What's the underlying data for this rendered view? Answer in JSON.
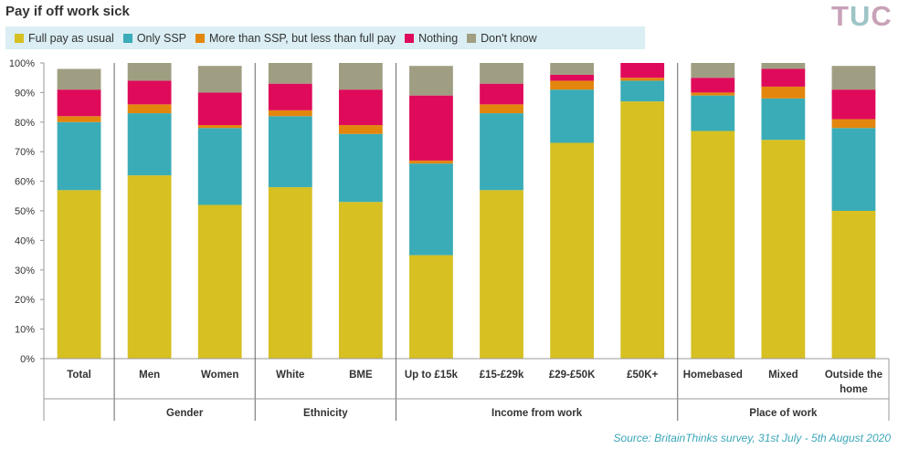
{
  "title": "Pay if off work sick",
  "logo": {
    "letters": [
      "T",
      "U",
      "C"
    ]
  },
  "source": "Source: BritainThinks  survey, 31st July - 5th August 2020",
  "chart_data": {
    "type": "bar",
    "stacked": true,
    "ylim": [
      0,
      100
    ],
    "ytick_labels": [
      "0%",
      "10%",
      "20%",
      "30%",
      "40%",
      "50%",
      "60%",
      "70%",
      "80%",
      "90%",
      "100%"
    ],
    "legend_placement": "top-left",
    "categories": [
      {
        "label": "Total",
        "lines": [
          "Total"
        ],
        "group": 0
      },
      {
        "label": "Men",
        "lines": [
          "Men"
        ],
        "group": 1
      },
      {
        "label": "Women",
        "lines": [
          "Women"
        ],
        "group": 1
      },
      {
        "label": "White",
        "lines": [
          "White"
        ],
        "group": 2
      },
      {
        "label": "BME",
        "lines": [
          "BME"
        ],
        "group": 2
      },
      {
        "label": "Up to £15k",
        "lines": [
          "Up to £15k"
        ],
        "group": 3
      },
      {
        "label": "£15-£29k",
        "lines": [
          "£15-£29k"
        ],
        "group": 3
      },
      {
        "label": "£29-£50K",
        "lines": [
          "£29-£50K"
        ],
        "group": 3
      },
      {
        "label": "£50K+",
        "lines": [
          "£50K+"
        ],
        "group": 3
      },
      {
        "label": "Homebased",
        "lines": [
          "Homebased"
        ],
        "group": 4
      },
      {
        "label": "Mixed",
        "lines": [
          "Mixed"
        ],
        "group": 4
      },
      {
        "label": "Outside the home",
        "lines": [
          "Outside the",
          "home"
        ],
        "group": 4
      }
    ],
    "groups": [
      "",
      "Gender",
      "Ethnicity",
      "Income from work",
      "Place of work"
    ],
    "series": [
      {
        "name": "Full pay as usual",
        "color": "#d6c022",
        "values": [
          57,
          62,
          52,
          58,
          53,
          35,
          57,
          73,
          87,
          77,
          74,
          50
        ]
      },
      {
        "name": "Only SSP",
        "color": "#3aacb7",
        "values": [
          23,
          21,
          26,
          24,
          23,
          31,
          26,
          18,
          7,
          12,
          14,
          28
        ]
      },
      {
        "name": "More than SSP, but less than full pay",
        "color": "#e3860e",
        "values": [
          2,
          3,
          1,
          2,
          3,
          1,
          3,
          3,
          1,
          1,
          4,
          3
        ]
      },
      {
        "name": "Nothing",
        "color": "#df0a5a",
        "values": [
          9,
          8,
          11,
          9,
          12,
          22,
          7,
          2,
          5,
          5,
          6,
          10
        ]
      },
      {
        "name": "Don't know",
        "color": "#a09e82",
        "values": [
          7,
          6,
          9,
          7,
          9,
          10,
          7,
          4,
          0,
          5,
          2,
          8
        ]
      }
    ]
  }
}
